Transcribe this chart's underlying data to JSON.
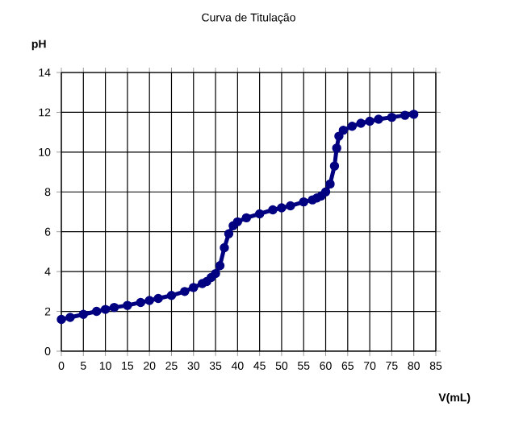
{
  "chart_data": {
    "type": "line",
    "title": "Curva de Titulação",
    "xlabel": "V(mL)",
    "ylabel": "pH",
    "x": [
      0,
      2,
      5,
      8,
      10,
      12,
      15,
      18,
      20,
      22,
      25,
      28,
      30,
      32,
      33,
      34,
      35,
      36,
      37,
      38,
      39,
      40,
      42,
      45,
      48,
      50,
      52,
      55,
      57,
      58,
      59,
      60,
      61,
      62,
      62.5,
      63,
      64,
      66,
      68,
      70,
      72,
      75,
      78,
      80
    ],
    "series": [
      {
        "color": "#000080",
        "values": [
          1.6,
          1.7,
          1.85,
          2.0,
          2.1,
          2.2,
          2.3,
          2.45,
          2.55,
          2.65,
          2.8,
          3.0,
          3.2,
          3.4,
          3.5,
          3.7,
          3.9,
          4.3,
          5.2,
          5.9,
          6.3,
          6.5,
          6.7,
          6.9,
          7.1,
          7.2,
          7.3,
          7.5,
          7.6,
          7.7,
          7.8,
          8.0,
          8.4,
          9.3,
          10.2,
          10.8,
          11.1,
          11.3,
          11.45,
          11.55,
          11.65,
          11.75,
          11.85,
          11.9
        ]
      }
    ],
    "xlim": [
      0,
      85
    ],
    "ylim": [
      0,
      14
    ],
    "xticks": [
      0,
      5,
      10,
      15,
      20,
      25,
      30,
      35,
      40,
      45,
      50,
      55,
      60,
      65,
      70,
      75,
      80,
      85
    ],
    "yticks": [
      0,
      2,
      4,
      6,
      8,
      10,
      12,
      14
    ],
    "grid": true,
    "marker": "circle",
    "line_style": "solid"
  }
}
